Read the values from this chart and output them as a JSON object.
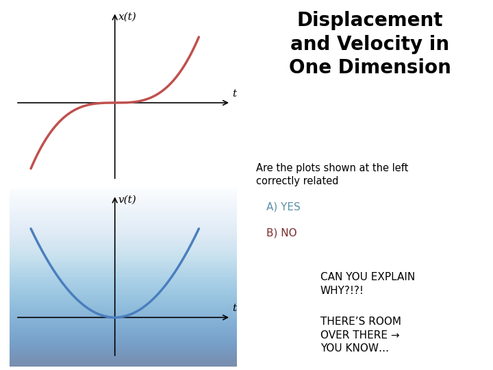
{
  "title": "Displacement\nand Velocity in\nOne Dimension",
  "title_fontsize": 20,
  "title_fontweight": "bold",
  "question_text": "Are the plots shown at the left\ncorrectly related",
  "question_fontsize": 10.5,
  "option_a": "A) YES",
  "option_b": "B) NO",
  "option_a_color": "#5b8fa8",
  "option_b_color": "#7b2d2d",
  "option_fontsize": 11,
  "extra_text1": "CAN YOU EXPLAIN\nWHY?!?!",
  "extra_text2": "THERE’S ROOM\nOVER THERE →\nYOU KNOW…",
  "extra_fontsize": 11,
  "curve1_color": "#c0504d",
  "curve2_color": "#4a7fbd",
  "label_x1": "t",
  "label_y1": "x(t)",
  "label_x2": "t",
  "label_y2": "v(t)",
  "label_fontsize": 11
}
